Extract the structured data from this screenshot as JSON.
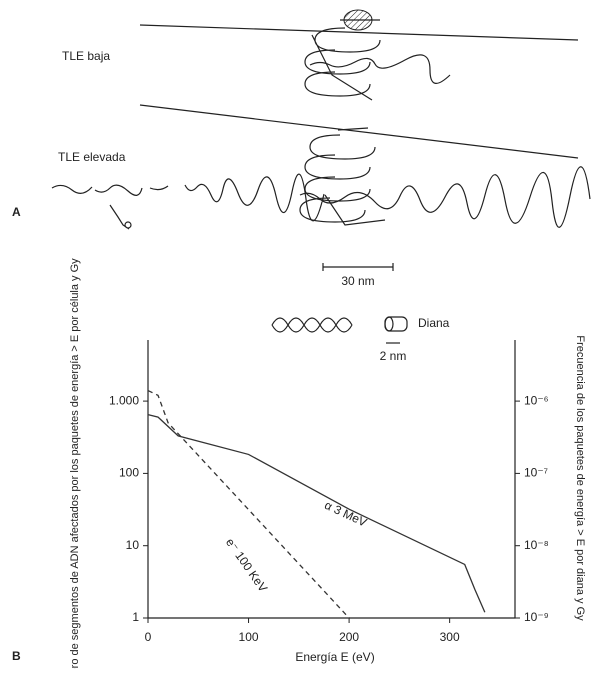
{
  "figure": {
    "panel_a": "A",
    "panel_b": "B",
    "low_let": "TLE baja",
    "high_let": "TLE elevada",
    "scale_bar": "30 nm",
    "dna_scale": "2 nm",
    "target": "Diana"
  },
  "chart_data": {
    "type": "line",
    "x_label": "Energía E (eV)",
    "y_label": "Número de segmentos de ADN afectados por los paquetes de energía > E por célula y Gy",
    "y2_label": "Frecuencia de los paquetes de energía > E por diana y Gy",
    "xlim": [
      0,
      365
    ],
    "xticks": [
      0,
      100,
      200,
      300
    ],
    "ylim": [
      1,
      7000
    ],
    "yticks": [
      1,
      10,
      100,
      {
        "value": 1000,
        "label": "1.000"
      }
    ],
    "ylog": true,
    "y2lim": [
      1e-09,
      7e-06
    ],
    "y2ticks": [
      {
        "value": 1e-09,
        "label": "10⁻⁹"
      },
      {
        "value": 1e-08,
        "label": "10⁻⁸"
      },
      {
        "value": 1e-07,
        "label": "10⁻⁷"
      },
      {
        "value": 1e-06,
        "label": "10⁻⁶"
      }
    ],
    "series": [
      {
        "name": "α 3 MeV",
        "color": "#333333",
        "dash": false,
        "x": [
          0,
          10,
          30,
          100,
          200,
          315,
          325,
          335
        ],
        "values": [
          650,
          600,
          330,
          183,
          32,
          5.5,
          2.5,
          1.2
        ]
      },
      {
        "name": "e⁻ 100 KeV",
        "color": "#333333",
        "dash": true,
        "x": [
          0,
          10,
          20,
          200
        ],
        "values": [
          1400,
          1200,
          500,
          1
        ]
      }
    ]
  }
}
